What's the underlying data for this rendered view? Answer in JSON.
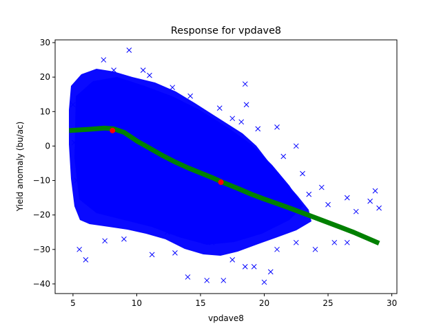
{
  "chart_data": {
    "type": "scatter",
    "title": "Response for vpdave8",
    "xlabel": "vpdave8",
    "ylabel": "Yield anomaly (bu/ac)",
    "xlim": [
      3.6,
      30.4
    ],
    "ylim": [
      -42.8,
      30.8
    ],
    "x_ticks": [
      5,
      10,
      15,
      20,
      25,
      30
    ],
    "y_ticks": [
      -40,
      -30,
      -20,
      -10,
      0,
      10,
      20,
      30
    ],
    "grid": false,
    "series": [
      {
        "kind": "scatter",
        "marker": "x",
        "color": "#0000ff",
        "points": [
          [
            9.4,
            27.8
          ],
          [
            7.4,
            25.0
          ],
          [
            8.2,
            22.0
          ],
          [
            10.5,
            22.0
          ],
          [
            11.0,
            20.5
          ],
          [
            12.8,
            17.0
          ],
          [
            14.2,
            14.5
          ],
          [
            16.5,
            11.0
          ],
          [
            17.5,
            8.0
          ],
          [
            18.2,
            7.0
          ],
          [
            19.5,
            5.0
          ],
          [
            21.0,
            5.5
          ],
          [
            22.5,
            0.0
          ],
          [
            21.5,
            -3.0
          ],
          [
            23.0,
            -8.0
          ],
          [
            23.5,
            -14.0
          ],
          [
            24.5,
            -12.0
          ],
          [
            25.0,
            -17.0
          ],
          [
            26.5,
            -15.0
          ],
          [
            27.2,
            -19.0
          ],
          [
            28.7,
            -13.0
          ],
          [
            29.0,
            -18.0
          ],
          [
            28.3,
            -16.0
          ],
          [
            26.5,
            -28.0
          ],
          [
            25.5,
            -28.0
          ],
          [
            24.0,
            -30.0
          ],
          [
            22.5,
            -28.0
          ],
          [
            21.0,
            -30.0
          ],
          [
            20.5,
            -36.5
          ],
          [
            20.0,
            -39.5
          ],
          [
            19.2,
            -35.0
          ],
          [
            18.5,
            -35.0
          ],
          [
            17.5,
            -33.0
          ],
          [
            16.8,
            -39.0
          ],
          [
            15.5,
            -39.0
          ],
          [
            14.0,
            -38.0
          ],
          [
            13.0,
            -31.0
          ],
          [
            11.2,
            -31.5
          ],
          [
            9.0,
            -27.0
          ],
          [
            7.5,
            -27.5
          ],
          [
            6.0,
            -33.0
          ],
          [
            5.5,
            -30.0
          ],
          [
            5.3,
            -10.0
          ],
          [
            5.8,
            -15.0
          ],
          [
            5.5,
            5.0
          ],
          [
            5.1,
            1.0
          ],
          [
            5.0,
            12.0
          ],
          [
            6.2,
            15.0
          ],
          [
            18.5,
            18.0
          ],
          [
            18.6,
            12.0
          ],
          [
            8.3,
            14.0
          ],
          [
            13.4,
            5.0
          ],
          [
            11.8,
            -6.0
          ],
          [
            15.2,
            -12.0
          ],
          [
            17.0,
            -20.0
          ],
          [
            10.4,
            -16.0
          ],
          [
            9.1,
            4.0
          ],
          [
            12.2,
            10.0
          ],
          [
            14.8,
            2.0
          ],
          [
            16.2,
            -4.0
          ],
          [
            19.8,
            -6.0
          ],
          [
            20.4,
            -14.0
          ],
          [
            22.1,
            -18.0
          ],
          [
            7.2,
            -4.0
          ],
          [
            8.7,
            -9.0
          ],
          [
            6.8,
            8.0
          ],
          [
            11.3,
            1.0
          ],
          [
            13.7,
            -20.0
          ],
          [
            15.9,
            -28.0
          ],
          [
            18.1,
            -25.0
          ],
          [
            12.4,
            -25.0
          ],
          [
            10.2,
            6.0
          ],
          [
            9.8,
            -20.0
          ]
        ]
      },
      {
        "kind": "line",
        "color": "#008000",
        "points": [
          [
            4.7,
            4.5
          ],
          [
            6.0,
            4.8
          ],
          [
            7.5,
            5.2
          ],
          [
            8.2,
            5.0
          ],
          [
            9.0,
            4.0
          ],
          [
            10.0,
            1.5
          ],
          [
            11.0,
            -0.6
          ],
          [
            12.0,
            -2.7
          ],
          [
            13.0,
            -4.6
          ],
          [
            14.0,
            -6.3
          ],
          [
            15.0,
            -7.8
          ],
          [
            16.0,
            -9.3
          ],
          [
            16.6,
            -10.3
          ],
          [
            18.0,
            -12.4
          ],
          [
            19.0,
            -14.0
          ],
          [
            20.0,
            -15.4
          ],
          [
            21.0,
            -16.7
          ],
          [
            22.0,
            -18.0
          ],
          [
            23.0,
            -19.4
          ],
          [
            24.0,
            -20.8
          ],
          [
            25.0,
            -22.2
          ],
          [
            26.0,
            -23.6
          ],
          [
            27.0,
            -25.0
          ],
          [
            28.0,
            -26.6
          ],
          [
            29.0,
            -28.2
          ]
        ]
      },
      {
        "kind": "points",
        "marker": "o",
        "color": "#ff0000",
        "points": [
          [
            8.1,
            4.5
          ],
          [
            16.6,
            -10.5
          ]
        ]
      }
    ]
  }
}
